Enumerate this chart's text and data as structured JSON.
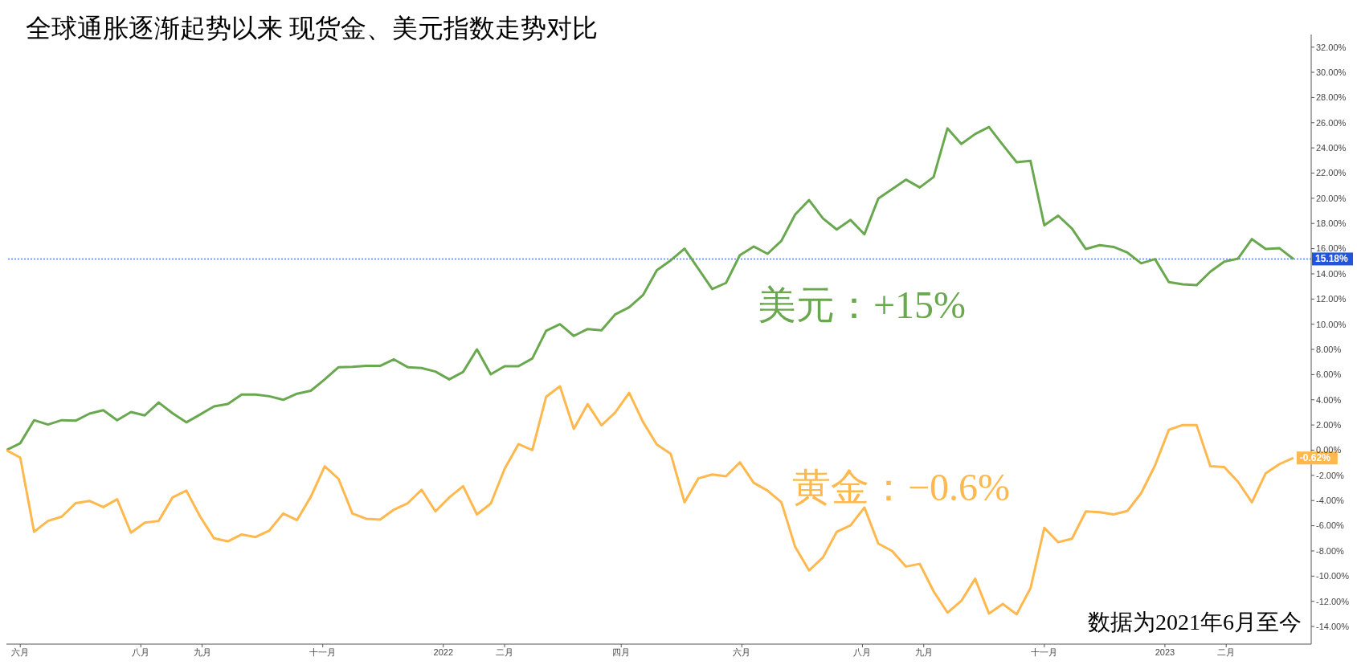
{
  "chart_data": {
    "type": "line",
    "title": "全球通胀逐渐起势以来 现货金、美元指数走势对比",
    "x": [
      "2021-05-25",
      "2021-06-01",
      "2021-06-08",
      "2021-06-15",
      "2021-06-22",
      "2021-06-29",
      "2021-07-06",
      "2021-07-13",
      "2021-07-20",
      "2021-07-27",
      "2021-08-03",
      "2021-08-10",
      "2021-08-17",
      "2021-08-24",
      "2021-08-31",
      "2021-09-07",
      "2021-09-14",
      "2021-09-21",
      "2021-09-28",
      "2021-10-05",
      "2021-10-12",
      "2021-10-19",
      "2021-10-26",
      "2021-11-02",
      "2021-11-09",
      "2021-11-16",
      "2021-11-23",
      "2021-11-30",
      "2021-12-07",
      "2021-12-14",
      "2021-12-21",
      "2021-12-28",
      "2022-01-04",
      "2022-01-11",
      "2022-01-18",
      "2022-01-25",
      "2022-02-01",
      "2022-02-08",
      "2022-02-15",
      "2022-02-22",
      "2022-03-01",
      "2022-03-08",
      "2022-03-15",
      "2022-03-22",
      "2022-03-29",
      "2022-04-05",
      "2022-04-12",
      "2022-04-19",
      "2022-04-26",
      "2022-05-03",
      "2022-05-10",
      "2022-05-17",
      "2022-05-24",
      "2022-05-31",
      "2022-06-07",
      "2022-06-14",
      "2022-06-21",
      "2022-06-28",
      "2022-07-05",
      "2022-07-12",
      "2022-07-19",
      "2022-07-26",
      "2022-08-02",
      "2022-08-09",
      "2022-08-16",
      "2022-08-23",
      "2022-08-30",
      "2022-09-06",
      "2022-09-13",
      "2022-09-20",
      "2022-09-27",
      "2022-10-04",
      "2022-10-11",
      "2022-10-18",
      "2022-10-25",
      "2022-11-01",
      "2022-11-08",
      "2022-11-15",
      "2022-11-22",
      "2022-11-29",
      "2022-12-06",
      "2022-12-13",
      "2022-12-20",
      "2022-12-27",
      "2023-01-03",
      "2023-01-10",
      "2023-01-17",
      "2023-01-24",
      "2023-01-31",
      "2023-02-07",
      "2023-02-14",
      "2023-02-21",
      "2023-02-28",
      "2023-03-07"
    ],
    "series": [
      {
        "color": "#6aa84f",
        "values": [
          0,
          0.55,
          2.38,
          2.03,
          2.38,
          2.34,
          2.9,
          3.17,
          2.38,
          3.03,
          2.76,
          3.79,
          2.93,
          2.21,
          2.83,
          3.48,
          3.66,
          4.41,
          4.41,
          4.28,
          4.0,
          4.48,
          4.72,
          5.62,
          6.59,
          6.62,
          6.69,
          6.69,
          7.21,
          6.59,
          6.52,
          6.24,
          5.62,
          6.21,
          8.0,
          6.03,
          6.66,
          6.66,
          7.28,
          9.48,
          10.0,
          9.07,
          9.62,
          9.52,
          10.79,
          11.34,
          12.31,
          14.28,
          15.07,
          16.0,
          14.41,
          12.79,
          13.28,
          15.48,
          16.17,
          15.59,
          16.62,
          18.72,
          19.86,
          18.41,
          17.52,
          18.28,
          17.14,
          19.97,
          20.72,
          21.48,
          20.86,
          21.69,
          25.55,
          24.31,
          25.1,
          25.66,
          24.24,
          22.86,
          22.97,
          17.86,
          18.62,
          17.59,
          15.97,
          16.28,
          16.14,
          15.69,
          14.83,
          15.17,
          13.34,
          13.17,
          13.1,
          14.17,
          14.97,
          15.21,
          16.76,
          15.97,
          16.03,
          15.18
        ]
      },
      {
        "color": "#ffb84d",
        "values": [
          0,
          -0.59,
          -6.48,
          -5.62,
          -5.28,
          -4.21,
          -4.03,
          -4.52,
          -3.9,
          -6.55,
          -5.76,
          -5.62,
          -3.76,
          -3.21,
          -5.28,
          -7.0,
          -7.24,
          -6.69,
          -6.9,
          -6.38,
          -5.03,
          -5.55,
          -3.69,
          -1.28,
          -2.28,
          -5.03,
          -5.45,
          -5.52,
          -4.72,
          -4.21,
          -3.14,
          -4.86,
          -3.76,
          -2.86,
          -5.1,
          -4.24,
          -1.48,
          0.48,
          0,
          4.24,
          5.07,
          1.69,
          3.66,
          1.97,
          3.0,
          4.55,
          2.24,
          0.45,
          -0.28,
          -4.14,
          -2.24,
          -1.93,
          -2.07,
          -0.97,
          -2.59,
          -3.21,
          -4.14,
          -7.69,
          -9.55,
          -8.52,
          -6.48,
          -5.97,
          -4.55,
          -7.41,
          -8.0,
          -9.24,
          -9.03,
          -11.21,
          -12.9,
          -11.97,
          -10.21,
          -12.97,
          -12.21,
          -13.03,
          -10.97,
          -6.17,
          -7.31,
          -7.03,
          -4.86,
          -4.93,
          -5.1,
          -4.83,
          -3.41,
          -1.21,
          1.62,
          2.0,
          2.0,
          -1.28,
          -1.34,
          -2.52,
          -4.14,
          -1.83,
          -1.1,
          -0.62
        ],
        "value_labels": [
          null,
          null,
          null,
          null,
          null,
          null,
          null,
          null,
          null,
          null,
          null,
          null,
          null,
          null,
          null,
          null,
          null,
          null,
          null,
          null,
          null,
          null,
          null,
          null,
          null,
          null,
          null,
          null,
          null,
          null,
          null,
          null,
          null,
          null,
          null,
          null,
          null,
          null,
          null,
          null,
          null,
          null,
          null,
          null,
          null,
          null,
          null,
          null,
          null,
          null,
          null,
          null,
          null,
          null,
          null,
          null,
          null,
          null,
          null,
          null,
          null,
          null,
          null,
          null,
          null,
          null,
          null,
          null,
          null,
          null,
          null,
          null,
          null,
          null,
          null,
          null,
          null,
          null,
          null,
          null,
          null,
          null,
          null,
          null,
          null,
          null,
          null,
          null,
          null,
          null,
          null,
          null,
          null,
          "-0.62%"
        ]
      }
    ],
    "xlim": [
      "2021-05-25",
      "2023-03-16"
    ],
    "xticks": [
      {
        "value": "2021-06-01",
        "label": "六月"
      },
      {
        "value": "2021-08-01",
        "label": "八月"
      },
      {
        "value": "2021-09-01",
        "label": "九月"
      },
      {
        "value": "2021-11-01",
        "label": "十一月"
      },
      {
        "value": "2022-01-01",
        "label": "2022"
      },
      {
        "value": "2022-02-01",
        "label": "二月"
      },
      {
        "value": "2022-04-01",
        "label": "四月"
      },
      {
        "value": "2022-06-01",
        "label": "六月"
      },
      {
        "value": "2022-08-01",
        "label": "八月"
      },
      {
        "value": "2022-09-01",
        "label": "九月"
      },
      {
        "value": "2022-11-01",
        "label": "十一月"
      },
      {
        "value": "2023-01-01",
        "label": "2023"
      },
      {
        "value": "2023-02-01",
        "label": "二月"
      }
    ],
    "ylim": [
      -15.4,
      33
    ],
    "yticks": [
      {
        "value": -14,
        "label": "-14.00%"
      },
      {
        "value": -12,
        "label": "-12.00%"
      },
      {
        "value": -10,
        "label": "-10.00%"
      },
      {
        "value": -8,
        "label": "-8.00%"
      },
      {
        "value": -6,
        "label": "-6.00%"
      },
      {
        "value": -4,
        "label": "-4.00%"
      },
      {
        "value": -2,
        "label": "-2.00%"
      },
      {
        "value": 0,
        "label": "0.00%"
      },
      {
        "value": 2,
        "label": "2.00%"
      },
      {
        "value": 4,
        "label": "4.00%"
      },
      {
        "value": 6,
        "label": "6.00%"
      },
      {
        "value": 8,
        "label": "8.00%"
      },
      {
        "value": 10,
        "label": "10.00%"
      },
      {
        "value": 12,
        "label": "12.00%"
      },
      {
        "value": 14,
        "label": "14.00%"
      },
      {
        "value": 16,
        "label": "16.00%"
      },
      {
        "value": 18,
        "label": "18.00%"
      },
      {
        "value": 20,
        "label": "20.00%"
      },
      {
        "value": 22,
        "label": "22.00%"
      },
      {
        "value": 24,
        "label": "24.00%"
      },
      {
        "value": 26,
        "label": "26.00%"
      },
      {
        "value": 28,
        "label": "28.00%"
      },
      {
        "value": 30,
        "label": "30.00%"
      },
      {
        "value": 32,
        "label": "32.00%"
      }
    ],
    "ref_lines": [
      {
        "axis": "y",
        "value": 15.18,
        "label": "15.18%",
        "color": "#2255dd",
        "line_style": "dotted"
      }
    ],
    "annotations": [
      "美元：+15%",
      "黄金：−0.6%",
      "数据为2021年6月至今"
    ],
    "grid": false,
    "legend": false,
    "marker": "none",
    "line_style": "solid"
  }
}
